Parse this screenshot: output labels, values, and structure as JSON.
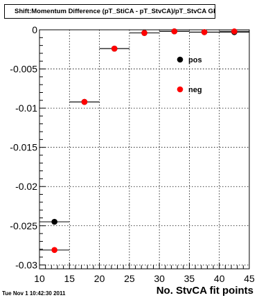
{
  "title": "Shift:Momentum Difference (pT_StiCA - pT_StvCA)/pT_StvCA Gl",
  "timestamp": "Tue Nov  1 10:42:30 2011",
  "chart_data": {
    "type": "scatter",
    "title": "Shift:Momentum Difference (pT_StiCA - pT_StvCA)/pT_StvCA Gl",
    "xlabel": "No. StvCA fit points",
    "ylabel": "",
    "xlim": [
      10,
      45
    ],
    "ylim": [
      -0.0305,
      0.0
    ],
    "xticks": [
      10,
      15,
      20,
      25,
      30,
      35,
      40,
      45
    ],
    "xtick_labels": [
      "10",
      "15",
      "20",
      "25",
      "30",
      "35",
      "40",
      "45"
    ],
    "yticks": [
      0,
      -0.005,
      -0.01,
      -0.015,
      -0.02,
      -0.025,
      -0.03
    ],
    "ytick_labels": [
      "0",
      "-0.005",
      "-0.01",
      "-0.015",
      "-0.02",
      "-0.025",
      "-0.03"
    ],
    "grid": true,
    "legend_position": "top-right",
    "series": [
      {
        "name": "pos",
        "color": "#000000",
        "points": [
          {
            "x": 12.5,
            "y": -0.0245,
            "xerr": 2.5
          },
          {
            "x": 17.5,
            "y": -0.0092,
            "xerr": 2.5
          },
          {
            "x": 22.5,
            "y": -0.0024,
            "xerr": 2.5
          },
          {
            "x": 27.5,
            "y": -0.0004,
            "xerr": 2.5
          },
          {
            "x": 32.5,
            "y": -0.0002,
            "xerr": 2.5
          },
          {
            "x": 37.5,
            "y": -0.0003,
            "xerr": 2.5
          },
          {
            "x": 42.5,
            "y": -0.0003,
            "xerr": 2.5
          }
        ]
      },
      {
        "name": "neg",
        "color": "#ff0000",
        "points": [
          {
            "x": 12.5,
            "y": -0.0281,
            "xerr": 2.5
          },
          {
            "x": 17.5,
            "y": -0.0092,
            "xerr": 2.5
          },
          {
            "x": 22.5,
            "y": -0.0024,
            "xerr": 2.5
          },
          {
            "x": 27.5,
            "y": -0.0004,
            "xerr": 2.5
          },
          {
            "x": 32.5,
            "y": -0.0002,
            "xerr": 2.5
          },
          {
            "x": 37.5,
            "y": -0.0003,
            "xerr": 2.5
          },
          {
            "x": 42.5,
            "y": -0.0002,
            "xerr": 2.5
          }
        ]
      }
    ]
  }
}
